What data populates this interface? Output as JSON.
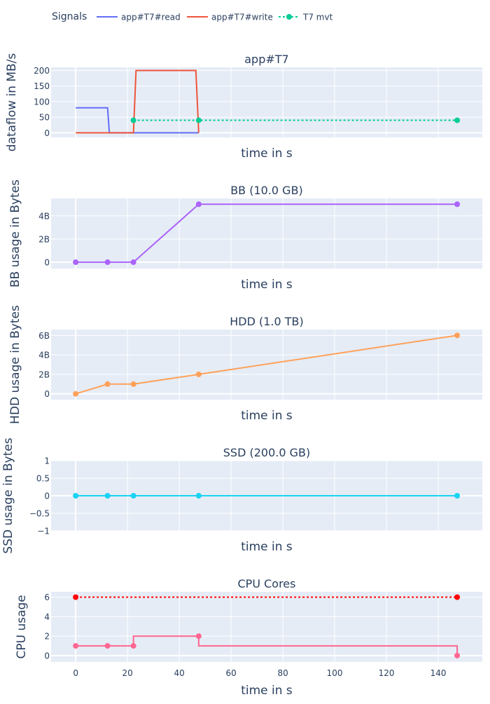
{
  "legend": {
    "title": "Signals",
    "items": [
      {
        "label": "app#T7#read",
        "color": "#636efa",
        "style": "solid",
        "marker": false
      },
      {
        "label": "app#T7#write",
        "color": "#ef553b",
        "style": "solid",
        "marker": false
      },
      {
        "label": "T7 mvt",
        "color": "#00cc96",
        "style": "dotted",
        "marker": true
      }
    ]
  },
  "colors": {
    "plot_bg": "#e5ecf6",
    "grid": "#ffffff",
    "text": "#2a3f5f"
  },
  "chart_data": [
    {
      "type": "line",
      "title": "app#T7",
      "xlabel": "time in s",
      "ylabel": "dataflow in MB/s",
      "xlim": [
        -9.5,
        157
      ],
      "ylim": [
        -15,
        210
      ],
      "yticks": [
        0,
        50,
        100,
        150,
        200
      ],
      "ytick_labels": [
        "0",
        "50",
        "100",
        "150",
        "200"
      ],
      "show_xticks": false,
      "series": [
        {
          "name": "app#T7#read",
          "color": "#636efa",
          "style": "solid",
          "markers": false,
          "x": [
            0,
            12.3,
            13.0,
            47.5
          ],
          "y": [
            80,
            80,
            0,
            0
          ]
        },
        {
          "name": "app#T7#write",
          "color": "#ef553b",
          "style": "solid",
          "markers": false,
          "x": [
            0,
            22.3,
            23.3,
            46.4,
            47.5
          ],
          "y": [
            0,
            0,
            200,
            200,
            0
          ]
        },
        {
          "name": "T7 mvt",
          "color": "#00cc96",
          "style": "dotted",
          "markers": true,
          "x": [
            22.3,
            47.5,
            147.3
          ],
          "y": [
            40,
            40,
            40
          ]
        }
      ]
    },
    {
      "type": "line",
      "title": "BB (10.0 GB)",
      "xlabel": "time in s",
      "ylabel": "BB usage in Bytes",
      "xlim": [
        -9.5,
        157
      ],
      "ylim": [
        -0.55,
        5.5
      ],
      "yticks": [
        0,
        2,
        4
      ],
      "ytick_labels": [
        "0",
        "2B",
        "4B"
      ],
      "show_xticks": false,
      "series": [
        {
          "color": "#ab63fa",
          "style": "solid",
          "markers": true,
          "x": [
            0,
            12.3,
            22.3,
            47.5,
            147.3
          ],
          "y": [
            0,
            0,
            0,
            5,
            5
          ]
        }
      ]
    },
    {
      "type": "line",
      "title": "HDD (1.0 TB)",
      "xlabel": "time in s",
      "ylabel": "HDD usage in Bytes",
      "xlim": [
        -9.5,
        157
      ],
      "ylim": [
        -0.6,
        6.6
      ],
      "yticks": [
        0,
        2,
        4,
        6
      ],
      "ytick_labels": [
        "0",
        "2B",
        "4B",
        "6B"
      ],
      "show_xticks": false,
      "series": [
        {
          "color": "#ffa15a",
          "style": "solid",
          "markers": true,
          "x": [
            0,
            12.3,
            22.3,
            47.5,
            147.3
          ],
          "y": [
            0,
            1,
            1,
            2,
            6
          ]
        }
      ]
    },
    {
      "type": "line",
      "title": "SSD (200.0 GB)",
      "xlabel": "time in s",
      "ylabel": "SSD usage in Bytes",
      "xlim": [
        -9.5,
        157
      ],
      "ylim": [
        -1,
        1
      ],
      "yticks": [
        -1,
        -0.5,
        0,
        0.5,
        1
      ],
      "ytick_labels": [
        "−1",
        "−0.5",
        "0",
        "0.5",
        "1"
      ],
      "show_xticks": false,
      "series": [
        {
          "color": "#19d3f3",
          "style": "solid",
          "markers": true,
          "x": [
            0,
            12.3,
            22.3,
            47.5,
            147.3
          ],
          "y": [
            0,
            0,
            0,
            0,
            0
          ]
        }
      ]
    },
    {
      "type": "line",
      "title": "CPU Cores",
      "xlabel": "time in s",
      "ylabel": "CPU usage",
      "xlim": [
        -9.5,
        157
      ],
      "ylim": [
        -0.65,
        6.55
      ],
      "yticks": [
        0,
        2,
        4,
        6
      ],
      "ytick_labels": [
        "0",
        "2",
        "4",
        "6"
      ],
      "xticks": [
        0,
        20,
        40,
        60,
        80,
        100,
        120,
        140
      ],
      "xtick_labels": [
        "0",
        "20",
        "40",
        "60",
        "80",
        "100",
        "120",
        "140"
      ],
      "show_xticks": true,
      "series": [
        {
          "color": "#ff0000",
          "style": "dotted",
          "markers": true,
          "marker_x": [
            0,
            147.3
          ],
          "x": [
            0,
            147.3
          ],
          "y": [
            6,
            6
          ]
        },
        {
          "color": "#ff6692",
          "style": "solid",
          "markers": true,
          "marker_x": [
            0,
            12.3,
            22.3,
            47.5,
            147.3
          ],
          "x": [
            0,
            12.3,
            22.3,
            22.3,
            47.5,
            47.5,
            147.3,
            147.3
          ],
          "y": [
            1,
            1,
            1,
            2,
            2,
            1,
            1,
            0
          ]
        }
      ]
    }
  ]
}
